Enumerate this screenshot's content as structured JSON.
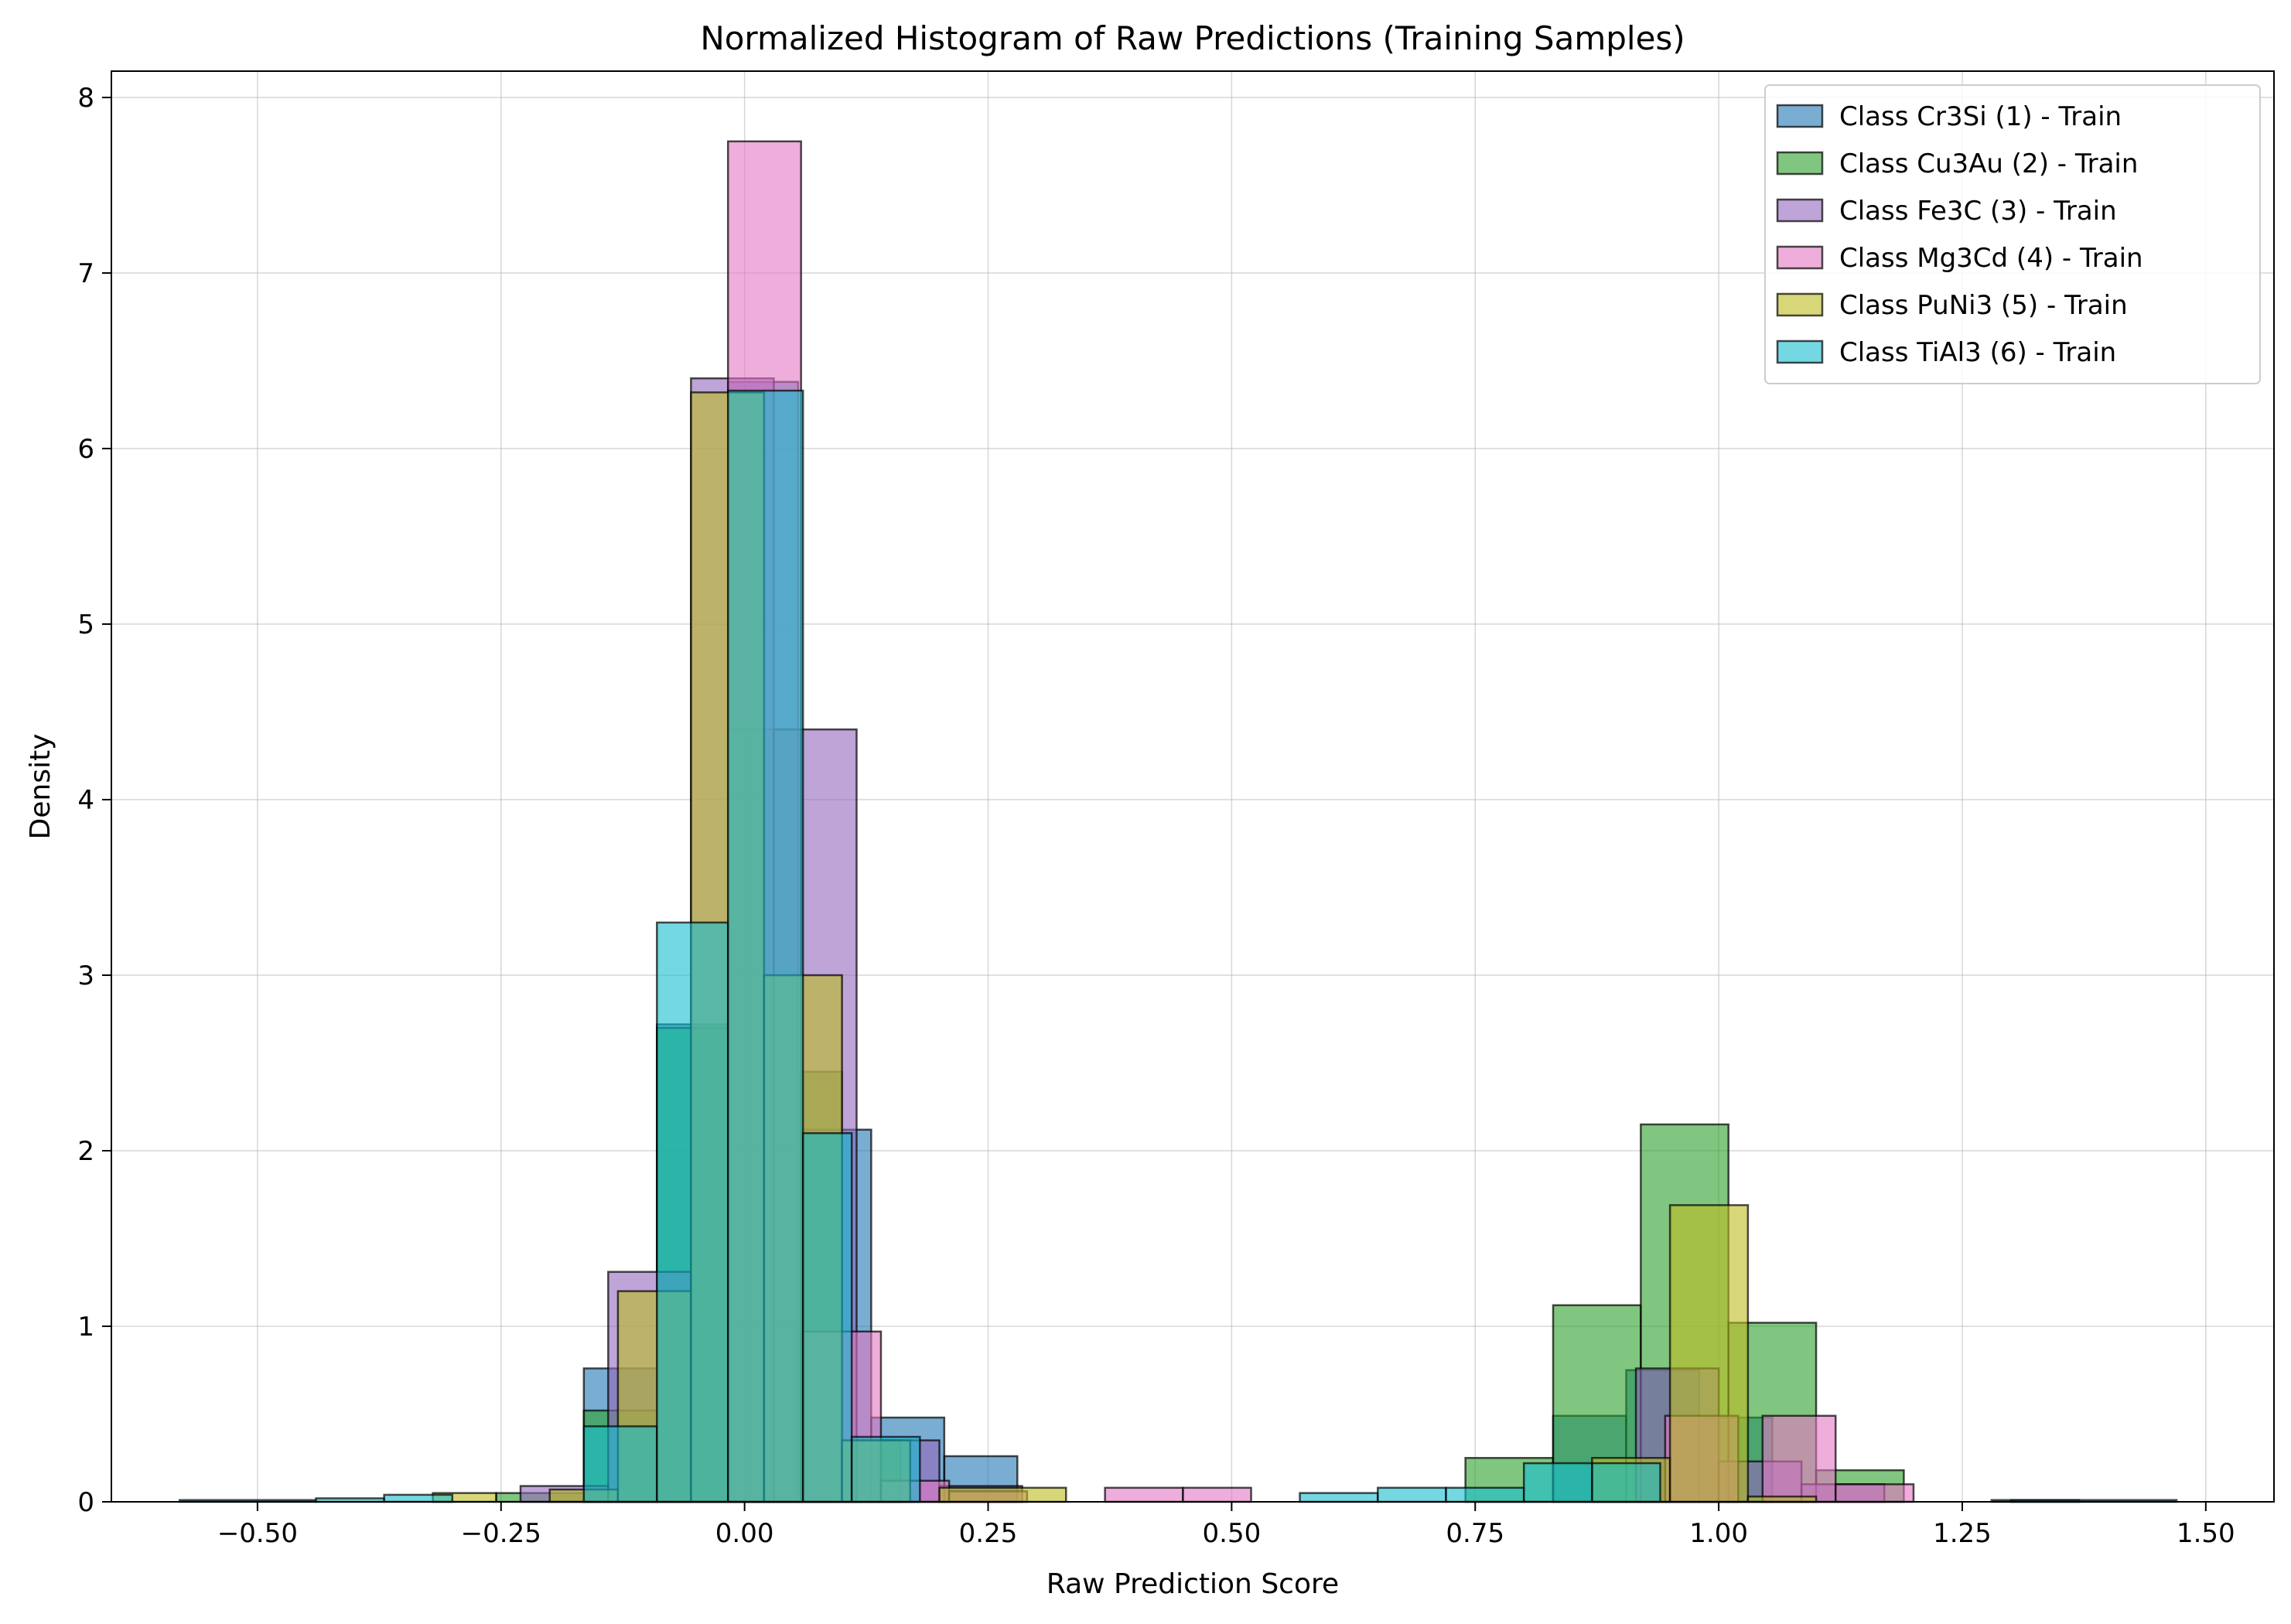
{
  "chart_data": {
    "type": "bar",
    "title": "Normalized Histogram of Raw Predictions (Training Samples)",
    "xlabel": "Raw Prediction Score",
    "ylabel": "Density",
    "xlim": [
      -0.65,
      1.57
    ],
    "ylim": [
      0,
      8.15
    ],
    "xticks": [
      -0.5,
      -0.25,
      0.0,
      0.25,
      0.5,
      0.75,
      1.0,
      1.25,
      1.5
    ],
    "xtick_labels": [
      "−0.50",
      "−0.25",
      "0.00",
      "0.25",
      "0.50",
      "0.75",
      "1.00",
      "1.25",
      "1.50"
    ],
    "yticks": [
      0,
      1,
      2,
      3,
      4,
      5,
      6,
      7,
      8
    ],
    "ytick_labels": [
      "0",
      "1",
      "2",
      "3",
      "4",
      "5",
      "6",
      "7",
      "8"
    ],
    "grid": true,
    "legend_position": "top-right",
    "series": [
      {
        "name": "Class Cr3Si (1) - Train",
        "color": "#1f77b4",
        "bins": [
          [
            -0.165,
            -0.09,
            0.76
          ],
          [
            -0.09,
            -0.017,
            2.72
          ],
          [
            -0.017,
            0.055,
            6.38
          ],
          [
            0.055,
            0.13,
            2.12
          ],
          [
            0.13,
            0.205,
            0.48
          ],
          [
            0.205,
            0.28,
            0.26
          ],
          [
            0.83,
            0.905,
            0.49
          ],
          [
            0.905,
            0.98,
            0.75
          ],
          [
            0.98,
            1.055,
            0.48
          ]
        ]
      },
      {
        "name": "Class Cu3Au (2) - Train",
        "color": "#2ca02c",
        "bins": [
          [
            -0.255,
            -0.165,
            0.05
          ],
          [
            -0.165,
            -0.09,
            0.52
          ],
          [
            -0.09,
            -0.017,
            2.7
          ],
          [
            -0.017,
            0.055,
            4.4
          ],
          [
            0.055,
            0.1,
            2.45
          ],
          [
            0.1,
            0.16,
            0.35
          ],
          [
            0.74,
            0.83,
            0.25
          ],
          [
            0.83,
            0.92,
            1.12
          ],
          [
            0.92,
            1.01,
            2.15
          ],
          [
            1.01,
            1.1,
            1.02
          ],
          [
            1.1,
            1.19,
            0.18
          ],
          [
            1.28,
            1.37,
            0.01
          ]
        ]
      },
      {
        "name": "Class Fe3C (3) - Train",
        "color": "#9467bd",
        "bins": [
          [
            -0.23,
            -0.14,
            0.09
          ],
          [
            -0.14,
            -0.055,
            1.31
          ],
          [
            -0.055,
            0.03,
            6.4
          ],
          [
            0.03,
            0.115,
            4.4
          ],
          [
            0.115,
            0.2,
            0.35
          ],
          [
            0.2,
            0.285,
            0.09
          ],
          [
            0.915,
            1.0,
            0.76
          ],
          [
            1.0,
            1.085,
            0.23
          ],
          [
            1.085,
            1.17,
            0.1
          ]
        ]
      },
      {
        "name": "Class Mg3Cd (4) - Train",
        "color": "#e377c2",
        "bins": [
          [
            -0.017,
            0.058,
            7.75
          ],
          [
            0.058,
            0.14,
            0.97
          ],
          [
            0.14,
            0.21,
            0.12
          ],
          [
            0.21,
            0.29,
            0.06
          ],
          [
            0.37,
            0.45,
            0.08
          ],
          [
            0.45,
            0.52,
            0.08
          ],
          [
            0.945,
            1.02,
            0.49
          ],
          [
            1.045,
            1.12,
            0.49
          ],
          [
            1.12,
            1.2,
            0.1
          ]
        ]
      },
      {
        "name": "Class PuNi3 (5) - Train",
        "color": "#bcbd22",
        "bins": [
          [
            -0.32,
            -0.255,
            0.05
          ],
          [
            -0.2,
            -0.13,
            0.07
          ],
          [
            -0.13,
            -0.055,
            1.2
          ],
          [
            -0.055,
            0.02,
            6.32
          ],
          [
            0.02,
            0.1,
            3.0
          ],
          [
            0.1,
            0.17,
            0.35
          ],
          [
            0.2,
            0.33,
            0.08
          ],
          [
            0.87,
            0.95,
            0.25
          ],
          [
            0.95,
            1.03,
            1.69
          ],
          [
            1.03,
            1.1,
            0.03
          ]
        ]
      },
      {
        "name": "Class TiAl3 (6) - Train",
        "color": "#17becf",
        "bins": [
          [
            -0.58,
            -0.44,
            0.01
          ],
          [
            -0.44,
            -0.37,
            0.02
          ],
          [
            -0.37,
            -0.3,
            0.04
          ],
          [
            -0.165,
            -0.09,
            0.43
          ],
          [
            -0.09,
            -0.017,
            3.3
          ],
          [
            -0.017,
            0.06,
            6.33
          ],
          [
            0.06,
            0.11,
            2.1
          ],
          [
            0.11,
            0.18,
            0.37
          ],
          [
            0.57,
            0.65,
            0.05
          ],
          [
            0.65,
            0.72,
            0.08
          ],
          [
            0.72,
            0.8,
            0.08
          ],
          [
            0.8,
            0.87,
            0.22
          ],
          [
            0.87,
            0.94,
            0.22
          ],
          [
            1.3,
            1.47,
            0.01
          ]
        ]
      }
    ]
  }
}
